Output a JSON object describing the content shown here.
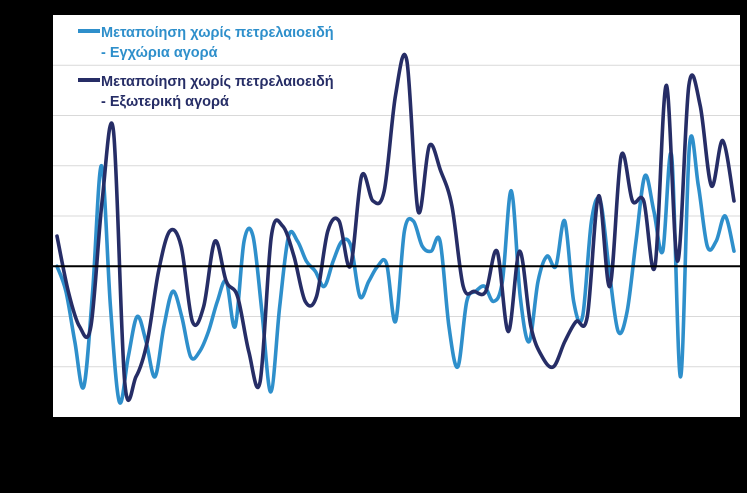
{
  "chart_data": {
    "type": "line",
    "title": "",
    "xlabel": "",
    "ylabel": "",
    "ylim": [
      -3,
      5
    ],
    "grid": true,
    "legend_placement": "top-left",
    "zero_line": true,
    "colors": {
      "background": "#000000",
      "plot_background": "#ffffff",
      "grid": "#d9d9d9",
      "zero_line": "#000000"
    },
    "series": [
      {
        "name_line1": "Μεταποίηση χωρίς πετρελαιοειδή",
        "name_line2": "- Εγχώρια αγορά",
        "color": "#2e8fcb",
        "values": [
          0,
          -0.5,
          -1.5,
          -2.4,
          -0.5,
          2,
          -0.8,
          -2.7,
          -1.8,
          -1.0,
          -1.5,
          -2.2,
          -1.2,
          -0.5,
          -1.0,
          -1.8,
          -1.7,
          -1.3,
          -0.7,
          -0.3,
          -1.2,
          0.5,
          0.6,
          -0.9,
          -2.5,
          -0.8,
          0.6,
          0.5,
          0.1,
          -0.1,
          -0.4,
          0.1,
          0.5,
          0.4,
          -0.6,
          -0.3,
          0.0,
          0.05,
          -1.1,
          0.7,
          0.9,
          0.4,
          0.3,
          0.5,
          -1.2,
          -2.0,
          -0.7,
          -0.5,
          -0.4,
          -0.7,
          -0.3,
          1.5,
          -0.6,
          -1.5,
          -0.3,
          0.2,
          0.0,
          0.9,
          -0.7,
          -1.0,
          0.9,
          1.3,
          -0.1,
          -1.3,
          -0.9,
          0.5,
          1.8,
          1.1,
          0.3,
          2.2,
          -2.2,
          2.4,
          1.6,
          0.4,
          0.5,
          1.0,
          0.3
        ]
      },
      {
        "name_line1": "Μεταποίηση χωρίς πετρελαιοειδή",
        "name_line2": "- Εξωτερική αγορά",
        "color": "#262d66",
        "values": [
          0.6,
          -0.5,
          -1.2,
          -1.2,
          1.3,
          2.7,
          -2.3,
          -2.2,
          -1.5,
          -0.1,
          0.7,
          0.4,
          -1.1,
          -0.8,
          0.5,
          -0.3,
          -0.6,
          -1.7,
          -2.3,
          0.6,
          0.8,
          0.2,
          -0.7,
          -0.6,
          0.7,
          0.9,
          0.0,
          1.8,
          1.3,
          1.5,
          3.4,
          4.1,
          1.1,
          2.4,
          1.9,
          1.2,
          -0.4,
          -0.5,
          -0.5,
          0.3,
          -1.3,
          0.3,
          -1.2,
          -1.8,
          -2.0,
          -1.5,
          -1.1,
          -1.0,
          1.4,
          -0.4,
          2.2,
          1.3,
          1.3,
          0.0,
          3.6,
          0.1,
          3.6,
          3.2,
          1.6,
          2.5,
          1.3
        ]
      }
    ]
  }
}
